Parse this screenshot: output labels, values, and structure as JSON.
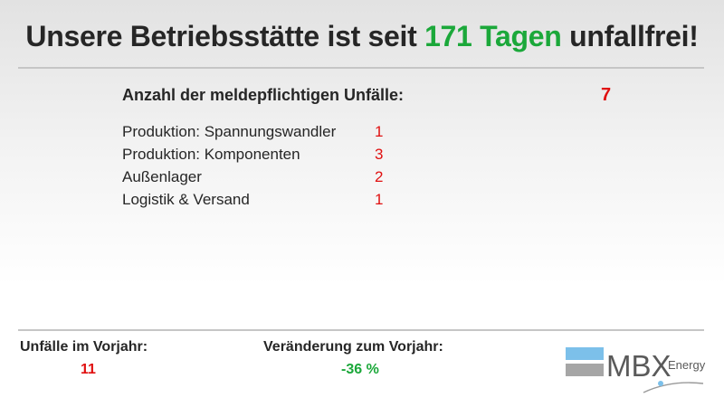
{
  "headline": {
    "prefix": "Unsere Betriebsstätte ist seit ",
    "highlight": "171 Tagen",
    "suffix": " unfallfrei!"
  },
  "summary": {
    "label": "Anzahl der meldepflichtigen Unfälle:",
    "total": "7"
  },
  "breakdown": [
    {
      "label": "Produktion: Spannungswandler",
      "count": "1"
    },
    {
      "label": "Produktion: Komponenten",
      "count": "3"
    },
    {
      "label": "Außenlager",
      "count": "2"
    },
    {
      "label": "Logistik & Versand",
      "count": "1"
    }
  ],
  "previous_year": {
    "label": "Unfälle im Vorjahr:",
    "value": "11"
  },
  "change": {
    "label": "Veränderung zum Vorjahr:",
    "value": "-36 %"
  },
  "logo": {
    "text": "MBX",
    "sub": "Energy"
  },
  "colors": {
    "text": "#262626",
    "green": "#1ba83a",
    "red": "#e01010",
    "logo_blue": "#7cc0ea",
    "logo_gray": "#a6a6a6"
  }
}
